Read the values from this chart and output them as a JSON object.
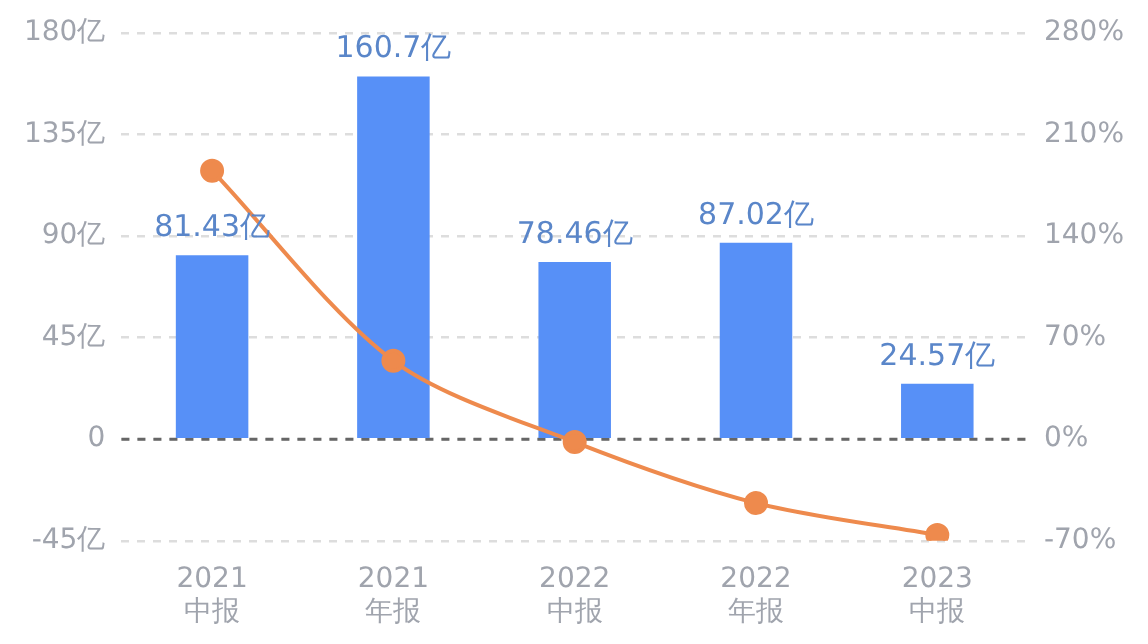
{
  "chart_data": {
    "type": "bar",
    "categories": [
      "2021\n中报",
      "2021\n年报",
      "2022\n中报",
      "2022\n年报",
      "2023\n中报"
    ],
    "series": [
      {
        "color": "#5790f7",
        "values": [
          81.43,
          160.7,
          78.46,
          87.02,
          24.57
        ],
        "value_labels": [
          "81.43亿",
          "160.7亿",
          "78.46亿",
          "87.02亿",
          "24.57亿"
        ]
      },
      {
        "type": "line",
        "axis": "y2",
        "color": "#ee8a4d",
        "marker": "circle",
        "values": [
          185,
          54,
          -2,
          -44,
          -66
        ]
      }
    ],
    "ylim": [
      -45,
      180
    ],
    "yticks": [
      {
        "value": -45,
        "label": "-45亿"
      },
      0,
      {
        "value": 45,
        "label": "45亿"
      },
      {
        "value": 90,
        "label": "90亿"
      },
      {
        "value": 135,
        "label": "135亿"
      },
      {
        "value": 180,
        "label": "180亿"
      }
    ],
    "y2lim": [
      -70,
      280
    ],
    "y2ticks": [
      {
        "value": -70,
        "label": "-70%"
      },
      {
        "value": 0,
        "label": "0%"
      },
      {
        "value": 70,
        "label": "70%"
      },
      {
        "value": 140,
        "label": "140%"
      },
      {
        "value": 210,
        "label": "210%"
      },
      {
        "value": 280,
        "label": "280%"
      }
    ],
    "ref_lines": [
      {
        "axis": "y",
        "value": 0,
        "color": "#666666",
        "line_style": "dashed"
      }
    ],
    "grid": "y",
    "legend": false
  }
}
